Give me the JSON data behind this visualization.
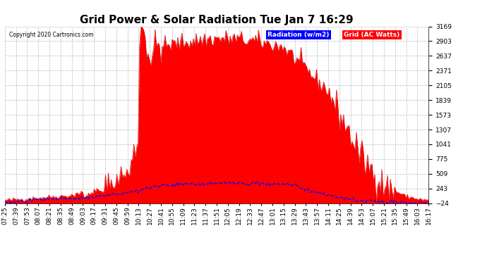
{
  "title": "Grid Power & Solar Radiation Tue Jan 7 16:29",
  "copyright": "Copyright 2020 Cartronics.com",
  "legend_radiation": "Radiation (w/m2)",
  "legend_grid": "Grid (AC Watts)",
  "ylabel_right_ticks": [
    3169.4,
    2903.4,
    2637.3,
    2371.2,
    2105.1,
    1839.1,
    1573.0,
    1306.9,
    1040.8,
    774.7,
    508.7,
    242.6,
    -23.5
  ],
  "ymin": -23.5,
  "ymax": 3169.4,
  "background_color": "#ffffff",
  "plot_bg_color": "#ffffff",
  "grid_color": "#aaaaaa",
  "radiation_fill_color": "#ff0000",
  "radiation_line_color": "#cc0000",
  "grid_line_color": "#0000ff",
  "legend_radiation_bg": "#0000ff",
  "legend_grid_bg": "#ff0000",
  "title_fontsize": 11,
  "tick_fontsize": 6.5,
  "x_tick_labels": [
    "07:25",
    "07:39",
    "07:53",
    "08:07",
    "08:21",
    "08:35",
    "08:49",
    "09:03",
    "09:17",
    "09:31",
    "09:45",
    "09:59",
    "10:13",
    "10:27",
    "10:41",
    "10:55",
    "11:09",
    "11:23",
    "11:37",
    "11:51",
    "12:05",
    "12:19",
    "12:33",
    "12:47",
    "13:01",
    "13:15",
    "13:29",
    "13:43",
    "13:57",
    "14:11",
    "14:25",
    "14:39",
    "14:53",
    "15:07",
    "15:21",
    "15:35",
    "15:49",
    "16:03",
    "16:17"
  ]
}
